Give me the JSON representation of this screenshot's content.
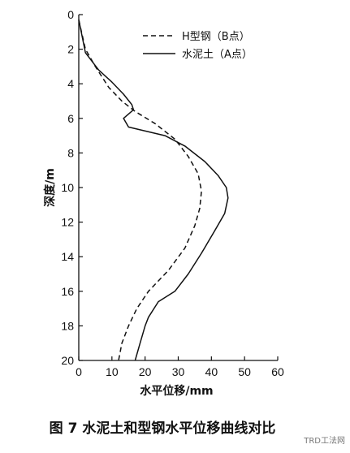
{
  "chart_data": {
    "type": "line",
    "xlabel": "水平位移/mm",
    "ylabel": "深度/m",
    "xlim": [
      0,
      60
    ],
    "ylim": [
      0,
      20
    ],
    "y_inverted": true,
    "x_axis_position": "top",
    "xticks": [
      0,
      10,
      20,
      30,
      40,
      50,
      60
    ],
    "yticks": [
      0,
      2,
      4,
      6,
      8,
      10,
      12,
      14,
      16,
      18,
      20
    ],
    "grid": false,
    "legend": "top-right",
    "series": [
      {
        "name": "H型钢（B点）",
        "style": "dashed",
        "points": [
          [
            0,
            0.3
          ],
          [
            2,
            2
          ],
          [
            5,
            3
          ],
          [
            9,
            4.2
          ],
          [
            13,
            5
          ],
          [
            17,
            5.6
          ],
          [
            23,
            6.3
          ],
          [
            29,
            7.2
          ],
          [
            33,
            8.2
          ],
          [
            36,
            9.2
          ],
          [
            37,
            10.2
          ],
          [
            36.5,
            11.2
          ],
          [
            35,
            12.2
          ],
          [
            32,
            13.5
          ],
          [
            27,
            14.8
          ],
          [
            21,
            16
          ],
          [
            17.5,
            17
          ],
          [
            15,
            18
          ],
          [
            13,
            19
          ],
          [
            12,
            20
          ]
        ]
      },
      {
        "name": "水泥土（A点）",
        "style": "solid",
        "points": [
          [
            0,
            0.3
          ],
          [
            2,
            2.2
          ],
          [
            6,
            3.2
          ],
          [
            10,
            3.9
          ],
          [
            13.5,
            4.6
          ],
          [
            16,
            5.2
          ],
          [
            16.5,
            5.5
          ],
          [
            13.5,
            6
          ],
          [
            15,
            6.5
          ],
          [
            26,
            7
          ],
          [
            32,
            7.6
          ],
          [
            38,
            8.5
          ],
          [
            42,
            9.3
          ],
          [
            44.5,
            10
          ],
          [
            45,
            10.6
          ],
          [
            44,
            11.5
          ],
          [
            41,
            12.5
          ],
          [
            37,
            13.8
          ],
          [
            33,
            15
          ],
          [
            29,
            16
          ],
          [
            24,
            16.6
          ],
          [
            21,
            17.5
          ],
          [
            20,
            18
          ],
          [
            18.5,
            19
          ],
          [
            17,
            20
          ]
        ]
      }
    ]
  },
  "caption": "图 7  水泥土和型钢水平位移曲线对比",
  "watermark": "TRD工法网"
}
